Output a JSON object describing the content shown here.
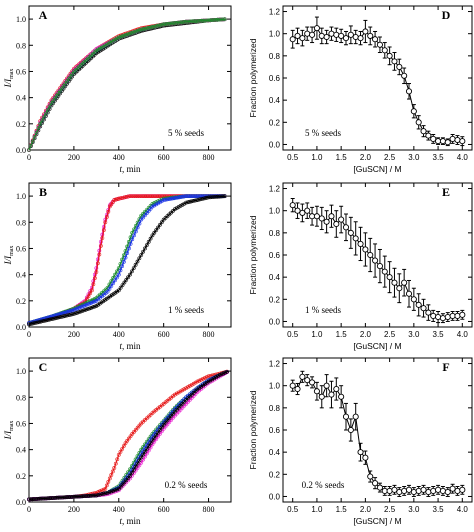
{
  "chart_data": [
    {
      "panel": "A",
      "type": "scatter",
      "annotation": "5 % seeds",
      "xlabel_italic": "t",
      "xlabel_rest": ", min",
      "ylabel": "I/I",
      "ylabel_sub": "max",
      "xlim": [
        0,
        900
      ],
      "ylim": [
        0,
        1.1
      ],
      "xticks": [
        0,
        200,
        400,
        600,
        800
      ],
      "yticks": [
        0.0,
        0.2,
        0.4,
        0.6,
        0.8,
        1.0
      ],
      "series": [
        {
          "color": "#000000",
          "x": [
            0,
            50,
            100,
            200,
            300,
            400,
            500,
            600,
            700,
            800,
            880
          ],
          "y": [
            0.0,
            0.18,
            0.34,
            0.58,
            0.74,
            0.85,
            0.91,
            0.95,
            0.97,
            0.99,
            1.0
          ]
        },
        {
          "color": "#1a32e6",
          "x": [
            0,
            50,
            100,
            200,
            300,
            400,
            500,
            600,
            700,
            800,
            880
          ],
          "y": [
            0.0,
            0.2,
            0.36,
            0.6,
            0.76,
            0.86,
            0.92,
            0.96,
            0.98,
            0.99,
            1.0
          ]
        },
        {
          "color": "#e61a1a",
          "x": [
            0,
            50,
            100,
            200,
            300,
            400,
            500,
            600,
            700,
            800,
            880
          ],
          "y": [
            0.0,
            0.22,
            0.38,
            0.62,
            0.77,
            0.87,
            0.93,
            0.96,
            0.98,
            0.99,
            1.0
          ]
        },
        {
          "color": "#e619cc",
          "x": [
            0,
            50,
            100,
            200,
            300,
            400,
            500,
            600,
            700,
            800,
            880
          ],
          "y": [
            0.0,
            0.21,
            0.37,
            0.61,
            0.77,
            0.86,
            0.92,
            0.96,
            0.98,
            0.99,
            1.0
          ]
        },
        {
          "color": "#1a8c2a",
          "x": [
            0,
            50,
            100,
            200,
            300,
            400,
            500,
            600,
            700,
            800,
            880
          ],
          "y": [
            0.0,
            0.2,
            0.36,
            0.6,
            0.76,
            0.86,
            0.92,
            0.96,
            0.98,
            0.99,
            1.0
          ]
        }
      ]
    },
    {
      "panel": "D",
      "type": "scatter",
      "annotation": "5 % seeds",
      "xlabel": "[GuSCN] / M",
      "ylabel": "Fraction polymerized",
      "xlim": [
        0.3,
        4.2
      ],
      "ylim": [
        -0.05,
        1.25
      ],
      "xticks": [
        0.5,
        1.0,
        1.5,
        2.0,
        2.5,
        3.0,
        3.5,
        4.0
      ],
      "yticks": [
        0.0,
        0.2,
        0.4,
        0.6,
        0.8,
        1.0,
        1.2
      ],
      "points": {
        "x": [
          0.5,
          0.6,
          0.7,
          0.8,
          0.9,
          1.0,
          1.1,
          1.2,
          1.3,
          1.4,
          1.5,
          1.6,
          1.7,
          1.8,
          1.9,
          2.0,
          2.1,
          2.2,
          2.3,
          2.4,
          2.5,
          2.6,
          2.7,
          2.8,
          2.9,
          3.0,
          3.1,
          3.2,
          3.3,
          3.4,
          3.5,
          3.6,
          3.7,
          3.8,
          3.9,
          4.0
        ],
        "y": [
          0.95,
          0.98,
          0.96,
          1.0,
          0.99,
          1.05,
          0.98,
          0.97,
          1.0,
          0.99,
          0.98,
          0.96,
          0.99,
          0.97,
          0.96,
          1.02,
          0.98,
          0.95,
          0.9,
          0.85,
          0.8,
          0.75,
          0.7,
          0.62,
          0.48,
          0.3,
          0.2,
          0.12,
          0.08,
          0.05,
          0.03,
          0.03,
          0.02,
          0.05,
          0.04,
          0.03
        ],
        "err": [
          0.08,
          0.07,
          0.07,
          0.06,
          0.07,
          0.1,
          0.07,
          0.06,
          0.06,
          0.06,
          0.06,
          0.06,
          0.08,
          0.06,
          0.06,
          0.1,
          0.08,
          0.07,
          0.07,
          0.07,
          0.08,
          0.08,
          0.07,
          0.07,
          0.07,
          0.06,
          0.06,
          0.05,
          0.04,
          0.04,
          0.03,
          0.03,
          0.03,
          0.04,
          0.04,
          0.04
        ]
      }
    },
    {
      "panel": "B",
      "type": "scatter",
      "annotation": "1 % seeds",
      "xlabel_italic": "t",
      "xlabel_rest": ", min",
      "ylabel": "I/I",
      "ylabel_sub": "max",
      "xlim": [
        0,
        900
      ],
      "ylim": [
        0,
        1.1
      ],
      "xticks": [
        0,
        200,
        400,
        600,
        800
      ],
      "yticks": [
        0.0,
        0.2,
        0.4,
        0.6,
        0.8,
        1.0
      ],
      "series": [
        {
          "color": "#e619cc",
          "x": [
            0,
            100,
            200,
            250,
            280,
            300,
            320,
            340,
            360,
            380,
            400,
            450,
            500,
            600,
            700,
            800,
            880
          ],
          "y": [
            0.03,
            0.07,
            0.14,
            0.2,
            0.3,
            0.45,
            0.65,
            0.82,
            0.93,
            0.97,
            0.98,
            1.0,
            1.0,
            1.0,
            1.0,
            1.0,
            1.0
          ]
        },
        {
          "color": "#e61a1a",
          "x": [
            0,
            100,
            200,
            250,
            280,
            300,
            320,
            340,
            360,
            380,
            400,
            450,
            500,
            600,
            700,
            800,
            880
          ],
          "y": [
            0.03,
            0.07,
            0.14,
            0.19,
            0.28,
            0.42,
            0.62,
            0.8,
            0.92,
            0.97,
            0.98,
            1.0,
            1.0,
            1.0,
            1.0,
            1.0,
            1.0
          ]
        },
        {
          "color": "#1a8c2a",
          "x": [
            0,
            100,
            200,
            300,
            350,
            400,
            430,
            460,
            500,
            550,
            600,
            700,
            800,
            880
          ],
          "y": [
            0.03,
            0.08,
            0.14,
            0.22,
            0.3,
            0.45,
            0.58,
            0.72,
            0.85,
            0.94,
            0.98,
            1.0,
            1.0,
            1.0
          ]
        },
        {
          "color": "#1a32e6",
          "x": [
            0,
            100,
            200,
            300,
            350,
            400,
            430,
            460,
            500,
            550,
            600,
            700,
            800,
            880
          ],
          "y": [
            0.03,
            0.08,
            0.13,
            0.2,
            0.27,
            0.4,
            0.53,
            0.67,
            0.82,
            0.92,
            0.97,
            1.0,
            1.0,
            1.0
          ]
        },
        {
          "color": "#000000",
          "x": [
            0,
            100,
            200,
            300,
            400,
            450,
            500,
            550,
            600,
            650,
            700,
            800,
            880
          ],
          "y": [
            0.02,
            0.06,
            0.1,
            0.16,
            0.28,
            0.4,
            0.55,
            0.7,
            0.82,
            0.9,
            0.95,
            0.99,
            1.0
          ]
        }
      ]
    },
    {
      "panel": "E",
      "type": "scatter",
      "annotation": "1 % seeds",
      "xlabel": "[GuSCN] / M",
      "ylabel": "Fraction polymerized",
      "xlim": [
        0.3,
        4.2
      ],
      "ylim": [
        -0.05,
        1.25
      ],
      "xticks": [
        0.5,
        1.0,
        1.5,
        2.0,
        2.5,
        3.0,
        3.5,
        4.0
      ],
      "yticks": [
        0.0,
        0.2,
        0.4,
        0.6,
        0.8,
        1.0,
        1.2
      ],
      "points": {
        "x": [
          0.5,
          0.6,
          0.7,
          0.8,
          0.9,
          1.0,
          1.1,
          1.2,
          1.3,
          1.4,
          1.5,
          1.6,
          1.7,
          1.8,
          1.9,
          2.0,
          2.1,
          2.2,
          2.3,
          2.4,
          2.5,
          2.6,
          2.7,
          2.8,
          2.9,
          3.0,
          3.1,
          3.2,
          3.3,
          3.4,
          3.5,
          3.6,
          3.7,
          3.8,
          3.9,
          4.0
        ],
        "y": [
          1.05,
          1.0,
          0.98,
          1.0,
          0.95,
          0.95,
          0.93,
          0.9,
          0.95,
          0.88,
          0.92,
          0.85,
          0.8,
          0.75,
          0.7,
          0.65,
          0.6,
          0.55,
          0.5,
          0.45,
          0.4,
          0.35,
          0.3,
          0.35,
          0.25,
          0.2,
          0.15,
          0.12,
          0.08,
          0.05,
          0.04,
          0.03,
          0.04,
          0.05,
          0.05,
          0.06
        ],
        "err": [
          0.06,
          0.07,
          0.08,
          0.07,
          0.08,
          0.09,
          0.1,
          0.1,
          0.1,
          0.12,
          0.12,
          0.12,
          0.14,
          0.15,
          0.15,
          0.15,
          0.15,
          0.15,
          0.15,
          0.14,
          0.14,
          0.13,
          0.13,
          0.12,
          0.12,
          0.1,
          0.1,
          0.08,
          0.07,
          0.05,
          0.05,
          0.04,
          0.04,
          0.04,
          0.04,
          0.04
        ]
      }
    },
    {
      "panel": "C",
      "type": "scatter",
      "annotation": "0.2 % seeds",
      "xlabel_italic": "t",
      "xlabel_rest": ", min",
      "ylabel": "I/I",
      "ylabel_sub": "max",
      "xlim": [
        0,
        900
      ],
      "ylim": [
        0,
        1.1
      ],
      "xticks": [
        0,
        200,
        400,
        600,
        800
      ],
      "yticks": [
        0.0,
        0.2,
        0.4,
        0.6,
        0.8,
        1.0
      ],
      "series": [
        {
          "color": "#e61a1a",
          "x": [
            0,
            100,
            200,
            250,
            300,
            340,
            360,
            380,
            400,
            430,
            460,
            500,
            550,
            600,
            650,
            700,
            750,
            800,
            850,
            890
          ],
          "y": [
            0.02,
            0.03,
            0.04,
            0.05,
            0.07,
            0.1,
            0.18,
            0.26,
            0.36,
            0.45,
            0.52,
            0.6,
            0.68,
            0.75,
            0.82,
            0.87,
            0.92,
            0.96,
            0.98,
            1.0
          ]
        },
        {
          "color": "#1a8c2a",
          "x": [
            0,
            100,
            200,
            300,
            350,
            400,
            450,
            500,
            550,
            600,
            650,
            700,
            750,
            800,
            850,
            890
          ],
          "y": [
            0.02,
            0.03,
            0.04,
            0.05,
            0.07,
            0.12,
            0.25,
            0.4,
            0.52,
            0.62,
            0.72,
            0.8,
            0.87,
            0.93,
            0.97,
            1.0
          ]
        },
        {
          "color": "#1a32e6",
          "x": [
            0,
            100,
            200,
            300,
            350,
            400,
            450,
            500,
            550,
            600,
            650,
            700,
            750,
            800,
            850,
            890
          ],
          "y": [
            0.02,
            0.03,
            0.04,
            0.05,
            0.07,
            0.11,
            0.22,
            0.37,
            0.5,
            0.61,
            0.71,
            0.8,
            0.87,
            0.93,
            0.97,
            1.0
          ]
        },
        {
          "color": "#e619cc",
          "x": [
            0,
            100,
            200,
            300,
            350,
            400,
            450,
            500,
            550,
            600,
            650,
            700,
            750,
            800,
            850,
            890
          ],
          "y": [
            0.02,
            0.03,
            0.04,
            0.05,
            0.06,
            0.09,
            0.18,
            0.3,
            0.44,
            0.56,
            0.66,
            0.75,
            0.84,
            0.91,
            0.96,
            1.0
          ]
        },
        {
          "color": "#000000",
          "x": [
            0,
            100,
            200,
            300,
            350,
            400,
            450,
            500,
            550,
            600,
            650,
            700,
            750,
            800,
            850,
            890
          ],
          "y": [
            0.02,
            0.03,
            0.04,
            0.05,
            0.07,
            0.1,
            0.2,
            0.34,
            0.47,
            0.59,
            0.69,
            0.78,
            0.86,
            0.92,
            0.97,
            1.0
          ]
        }
      ]
    },
    {
      "panel": "F",
      "type": "scatter",
      "annotation": "0.2 % seeds",
      "xlabel": "[GuSCN] / M",
      "ylabel": "Fraction polymerized",
      "xlim": [
        0.3,
        4.2
      ],
      "ylim": [
        -0.05,
        1.25
      ],
      "xticks": [
        0.5,
        1.0,
        1.5,
        2.0,
        2.5,
        3.0,
        3.5,
        4.0
      ],
      "yticks": [
        0.0,
        0.2,
        0.4,
        0.6,
        0.8,
        1.0,
        1.2
      ],
      "points": {
        "x": [
          0.5,
          0.6,
          0.7,
          0.8,
          0.9,
          1.0,
          1.1,
          1.2,
          1.3,
          1.4,
          1.5,
          1.6,
          1.7,
          1.8,
          1.9,
          2.0,
          2.1,
          2.2,
          2.3,
          2.4,
          2.5,
          2.6,
          2.7,
          2.8,
          2.9,
          3.0,
          3.1,
          3.2,
          3.3,
          3.4,
          3.5,
          3.6,
          3.7,
          3.8,
          3.9,
          4.0
        ],
        "y": [
          1.0,
          0.97,
          1.08,
          1.05,
          1.03,
          0.95,
          0.9,
          1.0,
          0.92,
          0.97,
          0.9,
          0.72,
          0.6,
          0.72,
          0.4,
          0.35,
          0.18,
          0.12,
          0.08,
          0.05,
          0.05,
          0.06,
          0.04,
          0.05,
          0.06,
          0.04,
          0.05,
          0.06,
          0.04,
          0.05,
          0.06,
          0.05,
          0.04,
          0.07,
          0.05,
          0.06
        ],
        "err": [
          0.05,
          0.05,
          0.05,
          0.05,
          0.05,
          0.08,
          0.1,
          0.1,
          0.12,
          0.1,
          0.1,
          0.12,
          0.1,
          0.12,
          0.08,
          0.06,
          0.05,
          0.05,
          0.04,
          0.04,
          0.04,
          0.04,
          0.04,
          0.04,
          0.04,
          0.04,
          0.04,
          0.04,
          0.04,
          0.04,
          0.04,
          0.04,
          0.04,
          0.04,
          0.04,
          0.04
        ]
      }
    }
  ]
}
